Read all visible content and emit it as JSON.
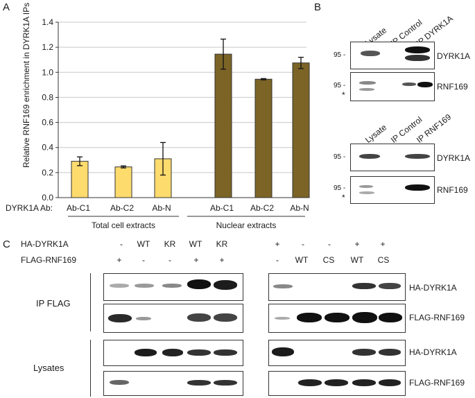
{
  "panels": {
    "A": "A",
    "B": "B",
    "C": "C"
  },
  "panel_a": {
    "ab_prefix": "DYRK1A Ab:",
    "group_labels": [
      "Total cell extracts",
      "Nuclear extracts"
    ]
  },
  "chart_data": {
    "type": "bar",
    "ylabel": "Relative RNF169 enrichment in DYRK1A IPs",
    "ylim": [
      0,
      1.4
    ],
    "yticks": [
      "0.0",
      "0.2",
      "0.4",
      "0.6",
      "0.8",
      "1.0",
      "1.2",
      "1.4"
    ],
    "categories": [
      "Ab-C1",
      "Ab-C2",
      "Ab-N",
      "Ab-C1",
      "Ab-C2",
      "Ab-N"
    ],
    "values": [
      0.29,
      0.245,
      0.31,
      1.145,
      0.945,
      1.075
    ],
    "errors": [
      0.035,
      0.008,
      0.13,
      0.12,
      0.005,
      0.045
    ],
    "groups": [
      "Total cell extracts",
      "Total cell extracts",
      "Total cell extracts",
      "Nuclear extracts",
      "Nuclear extracts",
      "Nuclear extracts"
    ],
    "colors": [
      "#FDDB6D",
      "#FDDB6D",
      "#FDDB6D",
      "#7B6426",
      "#7B6426",
      "#7B6426"
    ],
    "grid": true
  },
  "panel_b": {
    "top_lanes": [
      "Lysate",
      "IP Control",
      "IP DYRK1A"
    ],
    "bottom_lanes": [
      "Lysate",
      "IP Control",
      "IP RNF169"
    ],
    "blot_labels": [
      "DYRK1A",
      "RNF169",
      "DYRK1A",
      "RNF169"
    ],
    "marker": "95 -",
    "asterisk": "*"
  },
  "panel_c": {
    "row_ha": "HA-DYRK1A",
    "row_flag": "FLAG-RNF169",
    "left_ha": [
      "-",
      "WT",
      "KR",
      "WT",
      "KR"
    ],
    "left_flag": [
      "+",
      "-",
      "-",
      "+",
      "+"
    ],
    "right_ha": [
      "+",
      "-",
      "-",
      "+",
      "+"
    ],
    "right_flag": [
      "-",
      "WT",
      "CS",
      "WT",
      "CS"
    ],
    "ip_flag": "IP FLAG",
    "lysates": "Lysates",
    "blot_labels": [
      "HA-DYRK1A",
      "FLAG-RNF169",
      "HA-DYRK1A",
      "FLAG-RNF169"
    ]
  }
}
